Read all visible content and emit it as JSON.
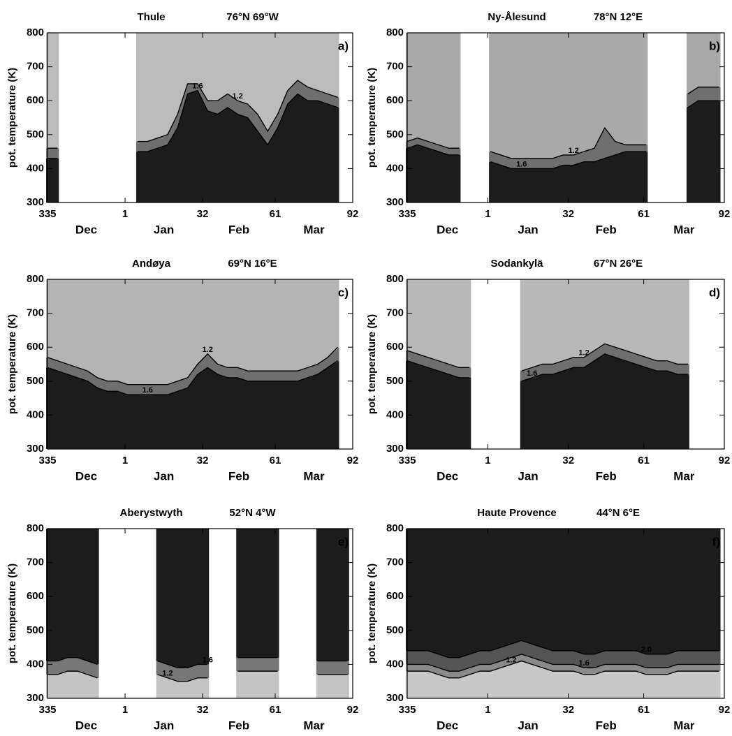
{
  "chart_data": [
    {
      "type": "contour",
      "title": "Thule",
      "subtitle": "76°N 69°W",
      "panel_label": "a)",
      "ylabel": "pot. temperature (K)",
      "xlim": [
        0,
        122
      ],
      "xticks": [
        {
          "value": 0,
          "label": "335"
        },
        {
          "value": 31,
          "label": "1"
        },
        {
          "value": 62,
          "label": "32"
        },
        {
          "value": 91,
          "label": "61"
        },
        {
          "value": 122,
          "label": "92"
        }
      ],
      "months": [
        "Dec",
        "Jan",
        "Feb",
        "Mar"
      ],
      "ylim": [
        300,
        800
      ],
      "yticks": [
        300,
        400,
        500,
        600,
        700,
        800
      ],
      "band_colors": [
        "#1c1c1c",
        "#6f6f6f",
        "#bcbcbc"
      ],
      "x": [
        0,
        4,
        8,
        12,
        16,
        20,
        24,
        28,
        32,
        36,
        40,
        44,
        48,
        52,
        56,
        60,
        64,
        68,
        72,
        76,
        80,
        84,
        88,
        92,
        96,
        100,
        104,
        108,
        112,
        116,
        120
      ],
      "series": [
        {
          "name": "1.6",
          "color": "#000000",
          "values": [
            430,
            430,
            null,
            null,
            null,
            null,
            null,
            null,
            null,
            450,
            450,
            460,
            470,
            520,
            620,
            630,
            570,
            560,
            580,
            560,
            550,
            510,
            470,
            520,
            590,
            620,
            600,
            600,
            590,
            580,
            null
          ]
        },
        {
          "name": "1.2",
          "color": "#000000",
          "values": [
            460,
            460,
            null,
            null,
            null,
            null,
            null,
            null,
            null,
            480,
            480,
            490,
            500,
            560,
            650,
            650,
            600,
            600,
            620,
            600,
            590,
            560,
            510,
            560,
            630,
            660,
            640,
            630,
            620,
            610,
            null
          ]
        }
      ]
    },
    {
      "type": "contour",
      "title": "Ny-Ålesund",
      "subtitle": "78°N 12°E",
      "panel_label": "b)",
      "ylabel": "pot. temperature (K)",
      "xlim": [
        0,
        122
      ],
      "xticks": [
        {
          "value": 0,
          "label": "335"
        },
        {
          "value": 31,
          "label": "1"
        },
        {
          "value": 62,
          "label": "32"
        },
        {
          "value": 91,
          "label": "61"
        },
        {
          "value": 122,
          "label": "92"
        }
      ],
      "months": [
        "Dec",
        "Jan",
        "Feb",
        "Mar"
      ],
      "ylim": [
        300,
        800
      ],
      "yticks": [
        300,
        400,
        500,
        600,
        700,
        800
      ],
      "band_colors": [
        "#1c1c1c",
        "#6f6f6f",
        "#a9a9a9"
      ],
      "x": [
        0,
        4,
        8,
        12,
        16,
        20,
        24,
        28,
        32,
        36,
        40,
        44,
        48,
        52,
        56,
        60,
        64,
        68,
        72,
        76,
        80,
        84,
        88,
        92,
        96,
        100,
        104,
        108,
        112,
        116,
        120
      ],
      "series": [
        {
          "name": "1.6",
          "color": "#000000",
          "values": [
            460,
            470,
            460,
            450,
            440,
            440,
            null,
            null,
            420,
            410,
            400,
            400,
            400,
            400,
            400,
            410,
            410,
            420,
            420,
            430,
            440,
            450,
            450,
            450,
            null,
            null,
            null,
            580,
            600,
            600,
            600
          ]
        },
        {
          "name": "1.2",
          "color": "#000000",
          "values": [
            480,
            490,
            480,
            470,
            460,
            460,
            null,
            null,
            450,
            440,
            430,
            430,
            430,
            430,
            430,
            440,
            440,
            450,
            460,
            520,
            480,
            470,
            470,
            470,
            null,
            null,
            null,
            620,
            640,
            640,
            640
          ]
        }
      ]
    },
    {
      "type": "contour",
      "title": "Andøya",
      "subtitle": "69°N 16°E",
      "panel_label": "c)",
      "ylabel": "pot. temperature (K)",
      "xlim": [
        0,
        122
      ],
      "xticks": [
        {
          "value": 0,
          "label": "335"
        },
        {
          "value": 31,
          "label": "1"
        },
        {
          "value": 62,
          "label": "32"
        },
        {
          "value": 91,
          "label": "61"
        },
        {
          "value": 122,
          "label": "92"
        }
      ],
      "months": [
        "Dec",
        "Jan",
        "Feb",
        "Mar"
      ],
      "ylim": [
        300,
        800
      ],
      "yticks": [
        300,
        400,
        500,
        600,
        700,
        800
      ],
      "band_colors": [
        "#1c1c1c",
        "#6f6f6f",
        "#b4b4b4"
      ],
      "x": [
        0,
        4,
        8,
        12,
        16,
        20,
        24,
        28,
        32,
        36,
        40,
        44,
        48,
        52,
        56,
        60,
        64,
        68,
        72,
        76,
        80,
        84,
        88,
        92,
        96,
        100,
        104,
        108,
        112,
        116,
        120
      ],
      "series": [
        {
          "name": "1.6",
          "color": "#000000",
          "values": [
            540,
            530,
            520,
            510,
            500,
            480,
            470,
            470,
            460,
            460,
            460,
            460,
            460,
            470,
            480,
            520,
            540,
            520,
            510,
            510,
            500,
            500,
            500,
            500,
            500,
            500,
            510,
            520,
            540,
            560,
            null
          ]
        },
        {
          "name": "1.2",
          "color": "#000000",
          "values": [
            570,
            560,
            550,
            540,
            530,
            510,
            500,
            500,
            490,
            490,
            490,
            490,
            490,
            500,
            510,
            550,
            580,
            550,
            540,
            540,
            530,
            530,
            530,
            530,
            530,
            530,
            540,
            550,
            570,
            600,
            null
          ]
        }
      ]
    },
    {
      "type": "contour",
      "title": "Sodankylä",
      "subtitle": "67°N 26°E",
      "panel_label": "d)",
      "ylabel": "pot. temperature (K)",
      "xlim": [
        0,
        122
      ],
      "xticks": [
        {
          "value": 0,
          "label": "335"
        },
        {
          "value": 31,
          "label": "1"
        },
        {
          "value": 62,
          "label": "32"
        },
        {
          "value": 91,
          "label": "61"
        },
        {
          "value": 122,
          "label": "92"
        }
      ],
      "months": [
        "Dec",
        "Jan",
        "Feb",
        "Mar"
      ],
      "ylim": [
        300,
        800
      ],
      "yticks": [
        300,
        400,
        500,
        600,
        700,
        800
      ],
      "band_colors": [
        "#1c1c1c",
        "#6f6f6f",
        "#b8b8b8"
      ],
      "x": [
        0,
        4,
        8,
        12,
        16,
        20,
        24,
        28,
        32,
        36,
        40,
        44,
        48,
        52,
        56,
        60,
        64,
        68,
        72,
        76,
        80,
        84,
        88,
        92,
        96,
        100,
        104,
        108,
        112,
        116,
        120
      ],
      "series": [
        {
          "name": "1.6",
          "color": "#000000",
          "values": [
            560,
            550,
            540,
            530,
            520,
            510,
            510,
            null,
            null,
            null,
            null,
            500,
            510,
            520,
            520,
            530,
            540,
            540,
            560,
            580,
            570,
            560,
            550,
            540,
            530,
            530,
            520,
            520,
            null,
            null,
            null
          ]
        },
        {
          "name": "1.2",
          "color": "#000000",
          "values": [
            590,
            580,
            570,
            560,
            550,
            540,
            540,
            null,
            null,
            null,
            null,
            530,
            540,
            550,
            550,
            560,
            570,
            570,
            590,
            610,
            600,
            590,
            580,
            570,
            560,
            560,
            550,
            550,
            null,
            null,
            null
          ]
        }
      ]
    },
    {
      "type": "contour",
      "title": "Aberystwyth",
      "subtitle": "52°N 4°W",
      "panel_label": "e)",
      "ylabel": "pot. temperature (K)",
      "xlim": [
        0,
        122
      ],
      "xticks": [
        {
          "value": 0,
          "label": "335"
        },
        {
          "value": 31,
          "label": "1"
        },
        {
          "value": 62,
          "label": "32"
        },
        {
          "value": 91,
          "label": "61"
        },
        {
          "value": 122,
          "label": "92"
        }
      ],
      "months": [
        "Dec",
        "Jan",
        "Feb",
        "Mar"
      ],
      "ylim": [
        300,
        800
      ],
      "yticks": [
        300,
        400,
        500,
        600,
        700,
        800
      ],
      "band_colors": [
        "#c4c4c4",
        "#777777",
        "#1c1c1c"
      ],
      "x": [
        0,
        4,
        8,
        12,
        16,
        20,
        24,
        28,
        32,
        36,
        40,
        44,
        48,
        52,
        56,
        60,
        64,
        68,
        72,
        76,
        80,
        84,
        88,
        92,
        96,
        100,
        104,
        108,
        112,
        116,
        120
      ],
      "series": [
        {
          "name": "1.2",
          "color": "#000000",
          "values": [
            370,
            370,
            380,
            380,
            370,
            360,
            null,
            null,
            null,
            null,
            null,
            370,
            360,
            350,
            350,
            360,
            360,
            null,
            null,
            380,
            380,
            380,
            380,
            380,
            null,
            null,
            null,
            370,
            370,
            370,
            370
          ]
        },
        {
          "name": "1.6",
          "color": "#000000",
          "values": [
            410,
            410,
            420,
            420,
            410,
            400,
            null,
            null,
            null,
            null,
            null,
            410,
            400,
            390,
            390,
            400,
            400,
            null,
            null,
            420,
            420,
            420,
            420,
            420,
            null,
            null,
            null,
            410,
            410,
            410,
            410
          ]
        }
      ]
    },
    {
      "type": "contour",
      "title": "Haute Provence",
      "subtitle": "44°N 6°E",
      "panel_label": "f)",
      "ylabel": "pot. temperature (K)",
      "xlim": [
        0,
        122
      ],
      "xticks": [
        {
          "value": 0,
          "label": "335"
        },
        {
          "value": 31,
          "label": "1"
        },
        {
          "value": 62,
          "label": "32"
        },
        {
          "value": 91,
          "label": "61"
        },
        {
          "value": 122,
          "label": "92"
        }
      ],
      "months": [
        "Dec",
        "Jan",
        "Feb",
        "Mar"
      ],
      "ylim": [
        300,
        800
      ],
      "yticks": [
        300,
        400,
        500,
        600,
        700,
        800
      ],
      "band_colors": [
        "#c8c8c8",
        "#8a8a8a",
        "#555555",
        "#1c1c1c"
      ],
      "x": [
        0,
        4,
        8,
        12,
        16,
        20,
        24,
        28,
        32,
        36,
        40,
        44,
        48,
        52,
        56,
        60,
        64,
        68,
        72,
        76,
        80,
        84,
        88,
        92,
        96,
        100,
        104,
        108,
        112,
        116,
        120
      ],
      "series": [
        {
          "name": "1.2",
          "color": "#000000",
          "values": [
            380,
            380,
            380,
            370,
            360,
            360,
            370,
            380,
            380,
            390,
            400,
            410,
            400,
            390,
            380,
            380,
            380,
            370,
            370,
            380,
            380,
            380,
            380,
            370,
            370,
            370,
            380,
            380,
            380,
            380,
            380
          ]
        },
        {
          "name": "1.6",
          "color": "#000000",
          "values": [
            400,
            400,
            400,
            390,
            380,
            380,
            390,
            400,
            400,
            410,
            420,
            430,
            420,
            410,
            400,
            400,
            400,
            390,
            390,
            400,
            400,
            400,
            400,
            390,
            390,
            390,
            400,
            400,
            400,
            400,
            400
          ]
        },
        {
          "name": "2.0",
          "color": "#000000",
          "values": [
            440,
            440,
            440,
            430,
            420,
            420,
            430,
            440,
            440,
            450,
            460,
            470,
            460,
            450,
            440,
            440,
            440,
            430,
            430,
            440,
            440,
            440,
            440,
            430,
            430,
            430,
            440,
            440,
            440,
            440,
            440
          ]
        }
      ]
    }
  ]
}
